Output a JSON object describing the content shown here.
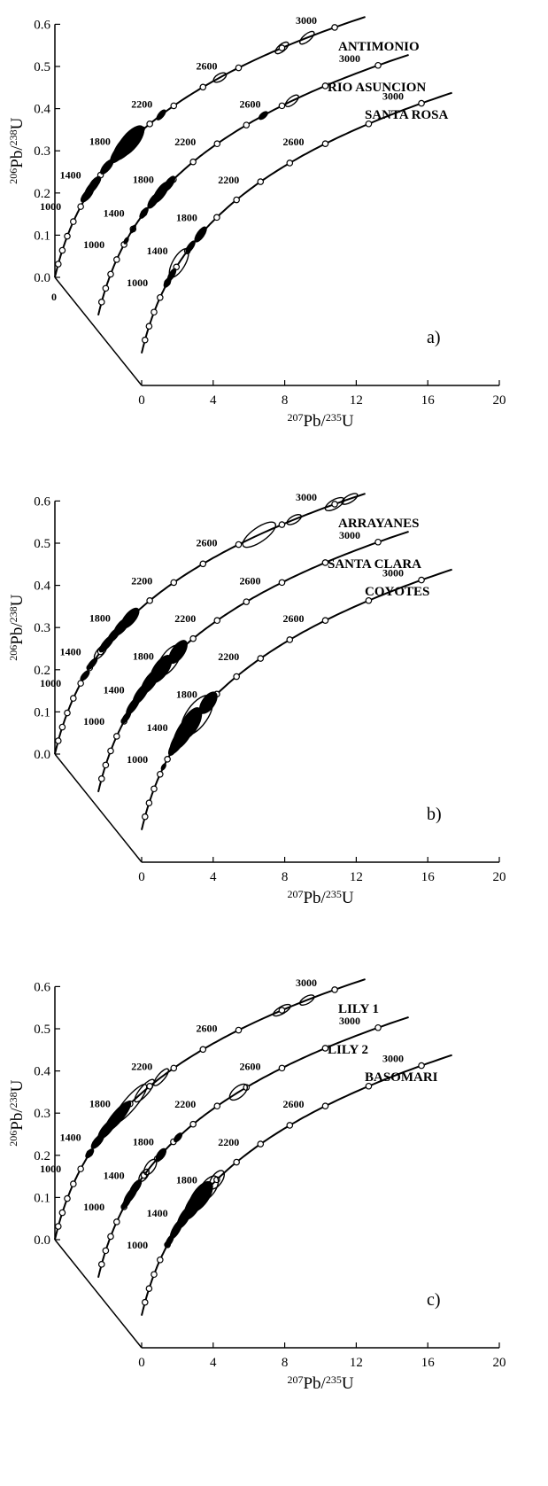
{
  "chart_data": [
    {
      "type": "scatter",
      "subtype": "stacked concordia diagrams with U-Pb error ellipses",
      "panel": "a)",
      "xlabel": {
        "sup": "207",
        "base": "Pb/",
        "sup2": "235",
        "base2": "U"
      },
      "ylabel": {
        "sup": "206",
        "base": "Pb/",
        "sup2": "238",
        "base2": "U"
      },
      "xlim": [
        0,
        20
      ],
      "ylim": [
        0.0,
        0.6
      ],
      "x_ticks": [
        "0",
        "4",
        "8",
        "12",
        "16",
        "20"
      ],
      "y_ticks": [
        "0.0",
        "0.1",
        "0.2",
        "0.3",
        "0.4",
        "0.5",
        "0.6"
      ],
      "origin_label": "0",
      "grid": false,
      "series": [
        {
          "name": "ANTIMONIO",
          "age_labels": [
            "1000",
            "1400",
            "1800",
            "2200",
            "2600",
            "3000"
          ]
        },
        {
          "name": "RIO ASUNCION",
          "age_labels": [
            "1000",
            "1400",
            "1800",
            "2200",
            "2600",
            "3000"
          ]
        },
        {
          "name": "SANTA ROSA",
          "age_labels": [
            "1000",
            "1400",
            "1800",
            "2200",
            "2600",
            "3000"
          ]
        }
      ]
    },
    {
      "type": "scatter",
      "subtype": "stacked concordia diagrams with U-Pb error ellipses",
      "panel": "b)",
      "xlabel": {
        "sup": "207",
        "base": "Pb/",
        "sup2": "235",
        "base2": "U"
      },
      "ylabel": {
        "sup": "206",
        "base": "Pb/",
        "sup2": "238",
        "base2": "U"
      },
      "xlim": [
        0,
        20
      ],
      "ylim": [
        0.0,
        0.6
      ],
      "x_ticks": [
        "0",
        "4",
        "8",
        "12",
        "16",
        "20"
      ],
      "y_ticks": [
        "0.0",
        "0.1",
        "0.2",
        "0.3",
        "0.4",
        "0.5",
        "0.6"
      ],
      "origin_label": "",
      "grid": false,
      "series": [
        {
          "name": "ARRAYANES",
          "age_labels": [
            "1000",
            "1400",
            "1800",
            "2200",
            "2600",
            "3000"
          ]
        },
        {
          "name": "SANTA CLARA",
          "age_labels": [
            "1000",
            "1400",
            "1800",
            "2200",
            "2600",
            "3000"
          ]
        },
        {
          "name": "COYOTES",
          "age_labels": [
            "1000",
            "1400",
            "1800",
            "2200",
            "2600",
            "3000"
          ]
        }
      ]
    },
    {
      "type": "scatter",
      "subtype": "stacked concordia diagrams with U-Pb error ellipses",
      "panel": "c)",
      "xlabel": {
        "sup": "207",
        "base": "Pb/",
        "sup2": "235",
        "base2": "U"
      },
      "ylabel": {
        "sup": "206",
        "base": "Pb/",
        "sup2": "238",
        "base2": "U"
      },
      "xlim": [
        0,
        20
      ],
      "ylim": [
        0.0,
        0.6
      ],
      "x_ticks": [
        "0",
        "4",
        "8",
        "12",
        "16",
        "20"
      ],
      "y_ticks": [
        "0.0",
        "0.1",
        "0.2",
        "0.3",
        "0.4",
        "0.5",
        "0.6"
      ],
      "origin_label": "",
      "grid": false,
      "series": [
        {
          "name": "LILY 1",
          "age_labels": [
            "1000",
            "1400",
            "1800",
            "2200",
            "2600",
            "3000"
          ]
        },
        {
          "name": "LILY 2",
          "age_labels": [
            "1000",
            "1400",
            "1800",
            "2200",
            "2600",
            "3000"
          ]
        },
        {
          "name": "BASOMARI",
          "age_labels": [
            "1000",
            "1400",
            "1800",
            "2200",
            "2600",
            "3000"
          ]
        }
      ]
    }
  ]
}
